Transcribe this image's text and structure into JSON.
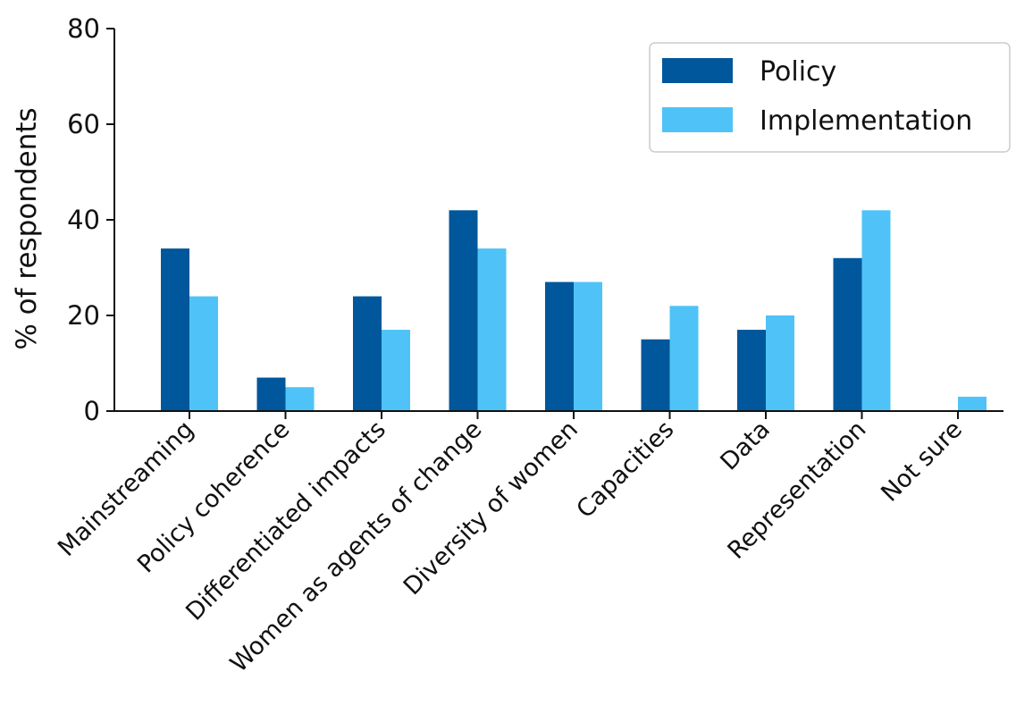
{
  "chart_data": {
    "type": "bar",
    "title": "",
    "xlabel": "",
    "ylabel": "% of respondents",
    "ylim": [
      0,
      80
    ],
    "yticks": [
      0,
      20,
      40,
      60,
      80
    ],
    "grid": false,
    "legend_position": "top-right",
    "categories": [
      "Mainstreaming",
      "Policy coherence",
      "Differentiated impacts",
      "Women as agents of change",
      "Diversity of women",
      "Capacities",
      "Data",
      "Representation",
      "Not sure"
    ],
    "series": [
      {
        "name": "Policy",
        "color": "#00579b",
        "values": [
          34,
          7,
          24,
          42,
          27,
          15,
          17,
          32,
          0
        ]
      },
      {
        "name": "Implementation",
        "color": "#4fc3f7",
        "values": [
          24,
          5,
          17,
          34,
          27,
          22,
          20,
          42,
          3
        ]
      }
    ]
  }
}
